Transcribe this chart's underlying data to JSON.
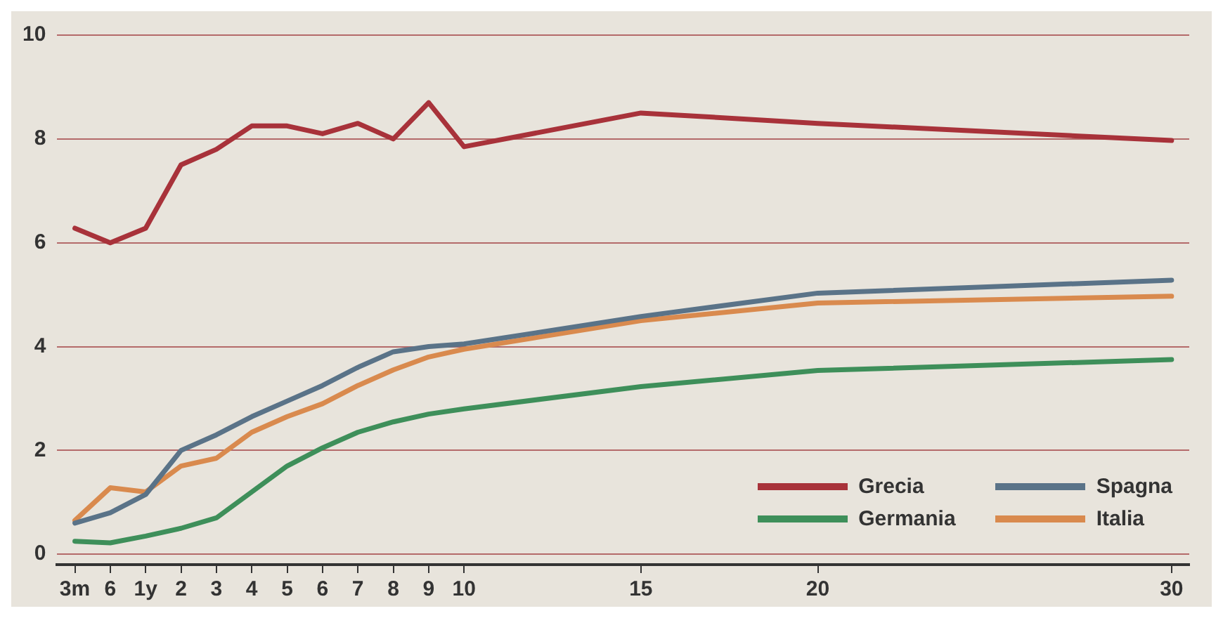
{
  "chart_data": {
    "type": "line",
    "categories": [
      "3m",
      "6",
      "1y",
      "2",
      "3",
      "4",
      "5",
      "6",
      "7",
      "8",
      "9",
      "10",
      null,
      null,
      null,
      null,
      "15",
      null,
      null,
      null,
      null,
      "20",
      null,
      null,
      null,
      null,
      null,
      null,
      null,
      null,
      null,
      "30"
    ],
    "ylim": [
      -0.2,
      10
    ],
    "yticks": [
      0,
      2,
      4,
      6,
      8,
      10
    ],
    "grid": "y",
    "legend": "bottom right",
    "marker": "none",
    "line_style": "solid",
    "series": [
      {
        "name": "Grecia",
        "color": "#a8323a",
        "values": [
          6.28,
          6.0,
          6.28,
          7.5,
          7.8,
          8.25,
          8.25,
          8.1,
          8.3,
          8.0,
          8.7,
          7.85,
          null,
          null,
          null,
          null,
          8.5,
          null,
          null,
          null,
          null,
          8.3,
          null,
          null,
          null,
          null,
          null,
          null,
          null,
          null,
          null,
          7.97
        ]
      },
      {
        "name": "Spagna",
        "color": "#5a7388",
        "values": [
          0.6,
          0.8,
          1.15,
          2.0,
          2.3,
          2.65,
          2.95,
          3.25,
          3.6,
          3.9,
          4.0,
          4.05,
          null,
          null,
          null,
          null,
          4.58,
          null,
          null,
          null,
          null,
          5.03,
          null,
          null,
          null,
          null,
          null,
          null,
          null,
          null,
          null,
          5.28
        ]
      },
      {
        "name": "Germania",
        "color": "#3e8f5a",
        "values": [
          0.25,
          0.22,
          0.35,
          0.5,
          0.7,
          1.2,
          1.7,
          2.05,
          2.35,
          2.55,
          2.7,
          2.8,
          null,
          null,
          null,
          null,
          3.23,
          null,
          null,
          null,
          null,
          3.54,
          null,
          null,
          null,
          null,
          null,
          null,
          null,
          null,
          null,
          3.75
        ]
      },
      {
        "name": "Italia",
        "color": "#d98a4e",
        "values": [
          0.65,
          1.28,
          1.2,
          1.7,
          1.85,
          2.35,
          2.65,
          2.9,
          3.25,
          3.55,
          3.8,
          3.95,
          null,
          null,
          null,
          null,
          4.5,
          null,
          null,
          null,
          null,
          4.84,
          null,
          null,
          null,
          null,
          null,
          null,
          null,
          null,
          null,
          4.97
        ]
      }
    ]
  }
}
